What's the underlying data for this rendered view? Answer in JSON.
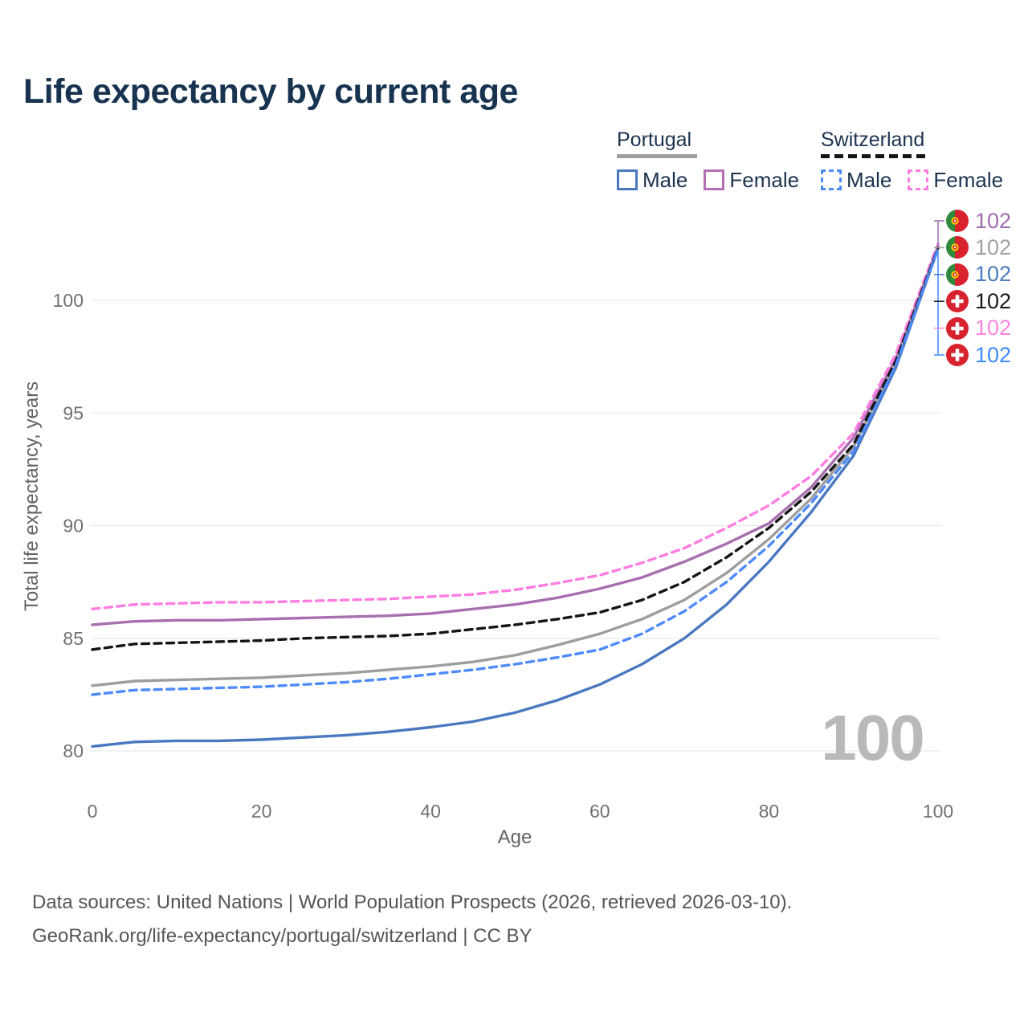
{
  "title": "Life expectancy by current age",
  "legend": {
    "groups": [
      {
        "country": "Portugal",
        "line_style": "solid",
        "underline_color": "#9e9e9e",
        "items": [
          {
            "label": "Male",
            "color": "#4a78c0"
          },
          {
            "label": "Female",
            "color": "#b470b4"
          }
        ]
      },
      {
        "country": "Switzerland",
        "line_style": "dashed",
        "underline_color": "#151515",
        "items": [
          {
            "label": "Male",
            "color": "#4d8bfd"
          },
          {
            "label": "Female",
            "color": "#ff7de0"
          }
        ]
      }
    ]
  },
  "end_labels": [
    {
      "flag": "portugal-flag-icon",
      "value": "102",
      "color": "#a06cb0",
      "series": "Portugal Female"
    },
    {
      "flag": "portugal-flag-icon",
      "value": "102",
      "color": "#a0a0a0",
      "series": "Portugal (both sexes)"
    },
    {
      "flag": "portugal-flag-icon",
      "value": "102",
      "color": "#4a7abf",
      "series": "Portugal Male"
    },
    {
      "flag": "switzerland-flag-icon",
      "value": "102",
      "color": "#1a1a1a",
      "series": "Switzerland (both sexes)"
    },
    {
      "flag": "switzerland-flag-icon",
      "value": "102",
      "color": "#ff85e0",
      "series": "Switzerland Female"
    },
    {
      "flag": "switzerland-flag-icon",
      "value": "102",
      "color": "#3d8bfd",
      "series": "Switzerland Male"
    }
  ],
  "watermark": "100",
  "caption": {
    "line1": "Data sources: United Nations | World Population Prospects (2026, retrieved 2026-03-10).",
    "line2": "GeoRank.org/life-expectancy/portugal/switzerland | CC BY"
  },
  "chart_data": {
    "type": "line",
    "title": "Life expectancy by current age",
    "xlabel": "Age",
    "ylabel": "Total life expectancy, years",
    "xlim": [
      0,
      100
    ],
    "ylim": [
      79.5,
      103
    ],
    "xticks": [
      0,
      20,
      40,
      60,
      80,
      100
    ],
    "yticks": [
      80,
      85,
      90,
      95,
      100
    ],
    "grid": "horizontal",
    "legend_position": "top-right",
    "x": [
      0,
      5,
      10,
      15,
      20,
      25,
      30,
      35,
      40,
      45,
      50,
      55,
      60,
      65,
      70,
      75,
      80,
      85,
      90,
      95,
      100
    ],
    "series": [
      {
        "name": "Portugal Female",
        "country": "Portugal",
        "sex": "Female",
        "style": "solid",
        "color": "#a86fb0",
        "values": [
          85.6,
          85.75,
          85.8,
          85.8,
          85.85,
          85.9,
          85.95,
          86.0,
          86.1,
          86.3,
          86.5,
          86.8,
          87.2,
          87.7,
          88.4,
          89.2,
          90.1,
          91.7,
          93.9,
          97.4,
          102.4
        ]
      },
      {
        "name": "Portugal (both sexes)",
        "country": "Portugal",
        "sex": "Both",
        "style": "solid",
        "color": "#9e9e9e",
        "values": [
          82.9,
          83.1,
          83.15,
          83.2,
          83.25,
          83.35,
          83.45,
          83.6,
          83.75,
          83.95,
          84.25,
          84.7,
          85.2,
          85.85,
          86.7,
          87.9,
          89.4,
          91.2,
          93.5,
          97.2,
          102.35
        ]
      },
      {
        "name": "Portugal Male",
        "country": "Portugal",
        "sex": "Male",
        "style": "solid",
        "color": "#4a78c0",
        "values": [
          80.2,
          80.4,
          80.45,
          80.45,
          80.5,
          80.6,
          80.7,
          80.85,
          81.05,
          81.3,
          81.7,
          82.25,
          82.95,
          83.85,
          85.0,
          86.5,
          88.4,
          90.6,
          93.1,
          97.0,
          102.3
        ]
      },
      {
        "name": "Switzerland Female",
        "country": "Switzerland",
        "sex": "Female",
        "style": "dashed",
        "color": "#ff7de0",
        "values": [
          86.3,
          86.5,
          86.55,
          86.6,
          86.6,
          86.65,
          86.7,
          86.75,
          86.85,
          86.95,
          87.15,
          87.45,
          87.8,
          88.35,
          89.0,
          89.9,
          90.9,
          92.2,
          94.1,
          97.6,
          102.5
        ]
      },
      {
        "name": "Switzerland (both sexes)",
        "country": "Switzerland",
        "sex": "Both",
        "style": "dashed",
        "color": "#151515",
        "values": [
          84.5,
          84.75,
          84.8,
          84.85,
          84.9,
          85.0,
          85.05,
          85.1,
          85.2,
          85.4,
          85.6,
          85.85,
          86.15,
          86.7,
          87.5,
          88.6,
          89.9,
          91.5,
          93.6,
          97.3,
          102.35
        ]
      },
      {
        "name": "Switzerland Male",
        "country": "Switzerland",
        "sex": "Male",
        "style": "dashed",
        "color": "#4d8bfd",
        "values": [
          82.5,
          82.7,
          82.75,
          82.8,
          82.85,
          82.95,
          83.05,
          83.2,
          83.4,
          83.6,
          83.85,
          84.15,
          84.5,
          85.2,
          86.2,
          87.5,
          89.1,
          91.0,
          93.3,
          97.1,
          102.3
        ]
      }
    ]
  }
}
